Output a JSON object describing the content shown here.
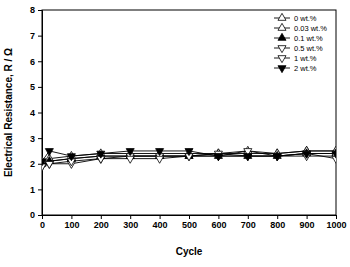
{
  "chart_data": {
    "type": "line",
    "x_label": "Cycle",
    "y_label": "Electrical Resistance, R / Ω",
    "x": [
      0,
      25,
      100,
      200,
      300,
      400,
      500,
      600,
      700,
      800,
      900,
      1000
    ],
    "series": [
      {
        "name": "0 wt.%",
        "color": "#000000",
        "marker": "triangle-up-open",
        "values": [
          2.0,
          2.1,
          2.2,
          2.3,
          2.3,
          2.3,
          2.3,
          2.4,
          2.4,
          2.4,
          2.5,
          2.5
        ]
      },
      {
        "name": "0.03 wt.%",
        "color": "#000000",
        "marker": "triangle-up-open",
        "values": [
          2.1,
          2.2,
          2.3,
          2.4,
          2.4,
          2.4,
          2.4,
          2.4,
          2.5,
          2.4,
          2.5,
          2.5
        ]
      },
      {
        "name": "0.1 wt.%",
        "color": "#000000",
        "marker": "triangle-up",
        "values": [
          2.0,
          2.1,
          2.2,
          2.3,
          2.3,
          2.3,
          2.3,
          2.3,
          2.3,
          2.3,
          2.4,
          2.4
        ]
      },
      {
        "name": "0.5 wt.%",
        "color": "#000000",
        "marker": "triangle-down-open",
        "values": [
          1.9,
          2.0,
          2.0,
          2.2,
          2.3,
          2.3,
          2.3,
          2.4,
          2.3,
          2.3,
          2.3,
          2.3
        ]
      },
      {
        "name": "1 wt.%",
        "color": "#000000",
        "marker": "triangle-down-open",
        "values": [
          1.9,
          2.0,
          2.1,
          2.2,
          2.2,
          2.2,
          2.3,
          2.3,
          2.5,
          2.3,
          2.4,
          2.2
        ]
      },
      {
        "name": "2 wt.%",
        "color": "#000000",
        "marker": "triangle-down",
        "values": [
          2.1,
          2.5,
          2.3,
          2.4,
          2.5,
          2.5,
          2.5,
          2.3,
          2.3,
          2.3,
          2.4,
          2.4
        ]
      }
    ],
    "xlim": [
      0,
      1000
    ],
    "xticks": [
      0,
      100,
      200,
      300,
      400,
      500,
      600,
      700,
      800,
      900,
      1000
    ],
    "ylim": [
      0,
      8
    ],
    "yticks": [
      0,
      1,
      2,
      3,
      4,
      5,
      6,
      7,
      8
    ],
    "grid": false,
    "legend": "upper right"
  }
}
